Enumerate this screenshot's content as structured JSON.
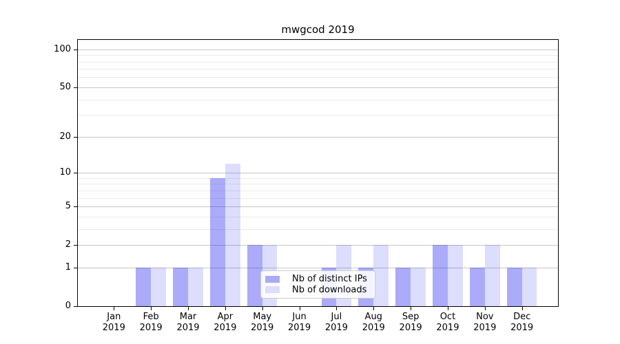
{
  "title": "mwgcod 2019",
  "legend": {
    "items": [
      {
        "label": "Nb of distinct IPs",
        "color": "#aaaaf9"
      },
      {
        "label": "Nb of downloads",
        "color": "#ddddfc"
      }
    ]
  },
  "chart_data": {
    "type": "bar",
    "title": "mwgcod 2019",
    "months": [
      "Jan",
      "Feb",
      "Mar",
      "Apr",
      "May",
      "Jun",
      "Jul",
      "Aug",
      "Sep",
      "Oct",
      "Nov",
      "Dec"
    ],
    "year": "2019",
    "series": [
      {
        "name": "Nb of distinct IPs",
        "color": "rgba(13,13,242,0.35)",
        "values": [
          0,
          1,
          1,
          9,
          2,
          0,
          1,
          1,
          1,
          2,
          1,
          1
        ]
      },
      {
        "name": "Nb of downloads",
        "color": "rgba(13,13,242,0.14)",
        "values": [
          0,
          1,
          1,
          12,
          2,
          0,
          2,
          2,
          1,
          2,
          2,
          1
        ]
      }
    ],
    "yscale": "log1p",
    "ylim": [
      0,
      118.6
    ],
    "yticks": [
      0,
      1,
      2,
      5,
      10,
      20,
      50,
      100
    ],
    "minor_yticks": [
      3,
      4,
      6,
      7,
      8,
      9,
      30,
      40,
      60,
      70,
      80,
      90
    ],
    "grid": true,
    "legend_position": "lower center"
  },
  "colors": {
    "grid_major": "#c6c6c6",
    "grid_minor": "#ebebeb",
    "spine": "#000000"
  }
}
